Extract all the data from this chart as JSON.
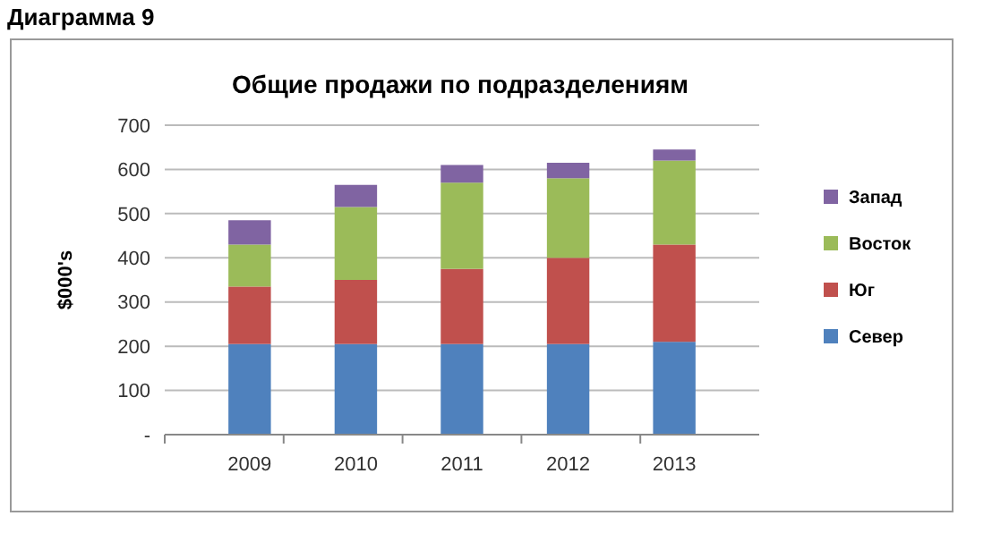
{
  "chart_data": {
    "type": "bar",
    "stacked": true,
    "title": "Общие продажи по подразделениям",
    "ylabel": "$000's",
    "annotations": [
      "Диаграмма 9"
    ],
    "categories": [
      "2009",
      "2010",
      "2011",
      "2012",
      "2013"
    ],
    "series": [
      {
        "name": "Север",
        "color": "#4f81bd",
        "values": [
          205,
          205,
          205,
          205,
          210
        ]
      },
      {
        "name": "Юг",
        "color": "#c0504d",
        "values": [
          130,
          145,
          170,
          195,
          220
        ]
      },
      {
        "name": "Восток",
        "color": "#9bbb59",
        "values": [
          95,
          165,
          195,
          180,
          190
        ]
      },
      {
        "name": "Запад",
        "color": "#8064a2",
        "values": [
          55,
          50,
          40,
          35,
          25
        ]
      }
    ],
    "ylim": [
      0,
      700
    ],
    "yticks": [
      {
        "value": 0,
        "label": "-"
      },
      100,
      200,
      300,
      400,
      500,
      600,
      700
    ],
    "grid": "y",
    "legend": "right"
  }
}
